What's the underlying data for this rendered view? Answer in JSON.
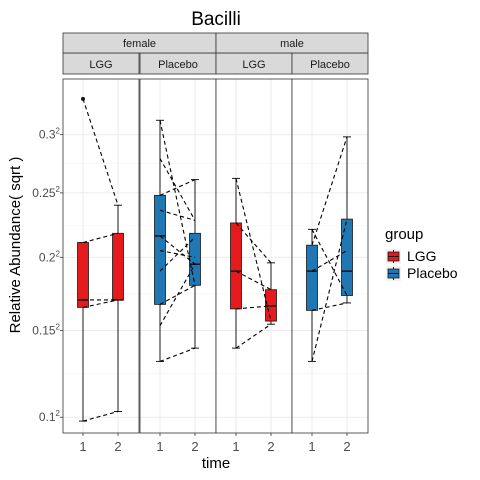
{
  "chart_data": {
    "type": "box",
    "title": "Bacilli",
    "xlabel": "time",
    "ylabel": "Relative Abundance( sqrt )",
    "y_scale": "sqrt",
    "y_ticks": [
      {
        "value": 0.1,
        "base": "0.1",
        "exp": "2"
      },
      {
        "value": 0.15,
        "base": "0.15",
        "exp": "2"
      },
      {
        "value": 0.2,
        "base": "0.2",
        "exp": "2"
      },
      {
        "value": 0.25,
        "base": "0.25",
        "exp": "2"
      },
      {
        "value": 0.3,
        "base": "0.3",
        "exp": "2"
      }
    ],
    "ylim": [
      0.092,
      0.352
    ],
    "categories": [
      "1",
      "2"
    ],
    "legend": {
      "title": "group",
      "position": "right",
      "entries": [
        {
          "name": "LGG",
          "color": "#E41A1C"
        },
        {
          "name": "Placebo",
          "color": "#1F78B4"
        }
      ]
    },
    "facet_rows": [
      {
        "label": "female",
        "panels": [
          0,
          1
        ]
      },
      {
        "label": "male",
        "panels": [
          2,
          3
        ]
      }
    ],
    "panels": [
      {
        "sex": "female",
        "group": "LGG",
        "color": "#E41A1C",
        "boxes": [
          {
            "time": "1",
            "min": 0.098,
            "q1": 0.165,
            "median": 0.17,
            "q3": 0.211,
            "max": 0.211,
            "outliers": [
              0.333
            ]
          },
          {
            "time": "2",
            "min": 0.103,
            "q1": 0.17,
            "median": 0.17,
            "q3": 0.218,
            "max": 0.24,
            "outliers": []
          }
        ],
        "pairs": [
          [
            0.333,
            0.24
          ],
          [
            0.211,
            0.218
          ],
          [
            0.17,
            0.17
          ],
          [
            0.165,
            0.17
          ],
          [
            0.098,
            0.103
          ]
        ]
      },
      {
        "sex": "female",
        "group": "Placebo",
        "color": "#1F78B4",
        "boxes": [
          {
            "time": "1",
            "min": 0.131,
            "q1": 0.167,
            "median": 0.216,
            "q3": 0.248,
            "max": 0.313,
            "outliers": []
          },
          {
            "time": "2",
            "min": 0.139,
            "q1": 0.18,
            "median": 0.195,
            "q3": 0.218,
            "max": 0.261,
            "outliers": []
          }
        ],
        "pairs": [
          [
            0.313,
            0.18
          ],
          [
            0.279,
            0.228
          ],
          [
            0.248,
            0.261
          ],
          [
            0.236,
            0.228
          ],
          [
            0.216,
            0.195
          ],
          [
            0.205,
            0.2
          ],
          [
            0.19,
            0.215
          ],
          [
            0.167,
            0.18
          ],
          [
            0.153,
            0.195
          ],
          [
            0.131,
            0.139
          ]
        ]
      },
      {
        "sex": "male",
        "group": "LGG",
        "color": "#E41A1C",
        "boxes": [
          {
            "time": "1",
            "min": 0.139,
            "q1": 0.164,
            "median": 0.19,
            "q3": 0.226,
            "max": 0.262,
            "outliers": []
          },
          {
            "time": "2",
            "min": 0.154,
            "q1": 0.156,
            "median": 0.166,
            "q3": 0.177,
            "max": 0.196,
            "outliers": []
          }
        ],
        "pairs": [
          [
            0.262,
            0.156
          ],
          [
            0.226,
            0.196
          ],
          [
            0.19,
            0.177
          ],
          [
            0.164,
            0.166
          ],
          [
            0.139,
            0.154
          ]
        ]
      },
      {
        "sex": "male",
        "group": "Placebo",
        "color": "#1F78B4",
        "boxes": [
          {
            "time": "1",
            "min": 0.131,
            "q1": 0.163,
            "median": 0.19,
            "q3": 0.209,
            "max": 0.221,
            "outliers": []
          },
          {
            "time": "2",
            "min": 0.168,
            "q1": 0.173,
            "median": 0.19,
            "q3": 0.229,
            "max": 0.298,
            "outliers": []
          }
        ],
        "pairs": [
          [
            0.221,
            0.173
          ],
          [
            0.209,
            0.298
          ],
          [
            0.19,
            0.205
          ],
          [
            0.163,
            0.168
          ],
          [
            0.131,
            0.229
          ]
        ]
      }
    ]
  }
}
